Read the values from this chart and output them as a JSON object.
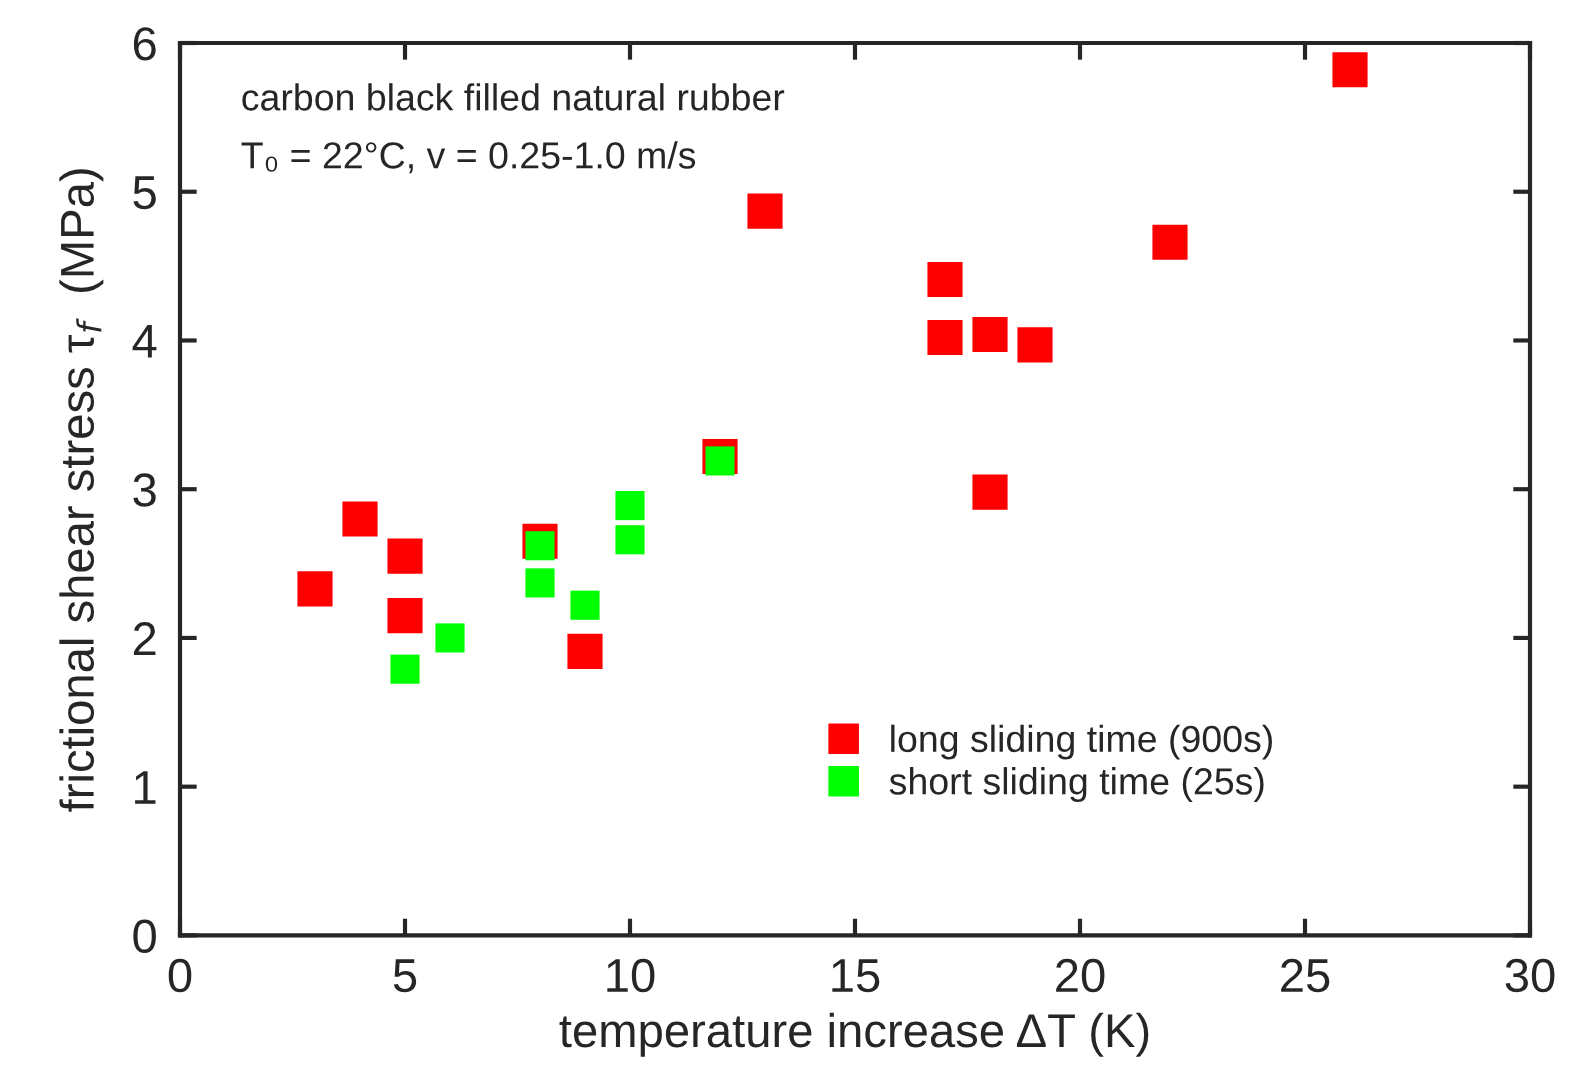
{
  "chart_data": {
    "type": "scatter",
    "xlabel": "temperature increase ΔT (K)",
    "ylabel": "frictional shear stress τ$_{f}$  (MPa)",
    "annotations": [
      "carbon black filled natural rubber",
      "T₀ = 22°C, v = 0.25-1.0 m/s"
    ],
    "series": [
      {
        "name": "long sliding time (900s)",
        "color": "#ff0000",
        "x": [
          3,
          4,
          5,
          5,
          8,
          9,
          12,
          13,
          17,
          17,
          18,
          18,
          19,
          22,
          26
        ],
        "values": [
          2.33,
          2.8,
          2.55,
          2.15,
          2.65,
          1.91,
          3.22,
          4.87,
          4.41,
          4.02,
          4.04,
          2.98,
          3.97,
          4.66,
          5.82
        ]
      },
      {
        "name": "short sliding time (25s)",
        "color": "#00ff00",
        "x": [
          5,
          6,
          8,
          8,
          9,
          10,
          10,
          12
        ],
        "values": [
          1.79,
          2.0,
          2.62,
          2.37,
          2.22,
          2.89,
          2.66,
          3.19
        ]
      }
    ],
    "xlim": [
      0,
      30
    ],
    "xticks": [
      0,
      5,
      10,
      15,
      20,
      25,
      30
    ],
    "ylim": [
      0,
      6
    ],
    "yticks": [
      0,
      1,
      2,
      3,
      4,
      5,
      6
    ],
    "marker": "square",
    "grid": false,
    "legend": "bottom right"
  }
}
